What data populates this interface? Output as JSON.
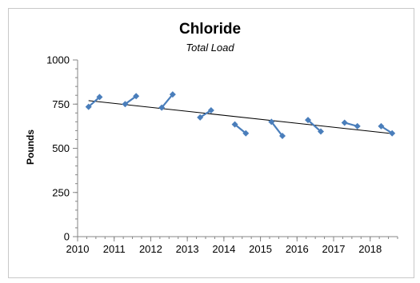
{
  "chart_data": {
    "type": "line",
    "title": "Chloride",
    "subtitle": "Total Load",
    "xlabel": "",
    "ylabel": "Pounds",
    "xlim": [
      2010,
      2018.75
    ],
    "ylim": [
      0,
      1000
    ],
    "x_ticks": [
      2010,
      2011,
      2012,
      2013,
      2014,
      2015,
      2016,
      2017,
      2018
    ],
    "y_ticks": [
      0,
      250,
      500,
      750,
      1000
    ],
    "grid": false,
    "legend": "none",
    "colors": {
      "series": "#4a7ebb",
      "trend": "#000000"
    },
    "series": [
      {
        "segments": [
          [
            [
              2010.3,
              735
            ],
            [
              2010.6,
              790
            ]
          ],
          [
            [
              2011.3,
              750
            ],
            [
              2011.6,
              795
            ]
          ],
          [
            [
              2012.3,
              730
            ],
            [
              2012.6,
              805
            ]
          ],
          [
            [
              2013.35,
              675
            ],
            [
              2013.65,
              715
            ]
          ],
          [
            [
              2014.3,
              635
            ],
            [
              2014.6,
              585
            ]
          ],
          [
            [
              2015.3,
              650
            ],
            [
              2015.6,
              570
            ]
          ],
          [
            [
              2016.3,
              660
            ],
            [
              2016.65,
              595
            ]
          ],
          [
            [
              2017.3,
              645
            ],
            [
              2017.65,
              625
            ]
          ],
          [
            [
              2018.3,
              625
            ],
            [
              2018.6,
              585
            ]
          ]
        ]
      }
    ],
    "trendline": [
      [
        2010.3,
        770
      ],
      [
        2018.6,
        583
      ]
    ]
  }
}
